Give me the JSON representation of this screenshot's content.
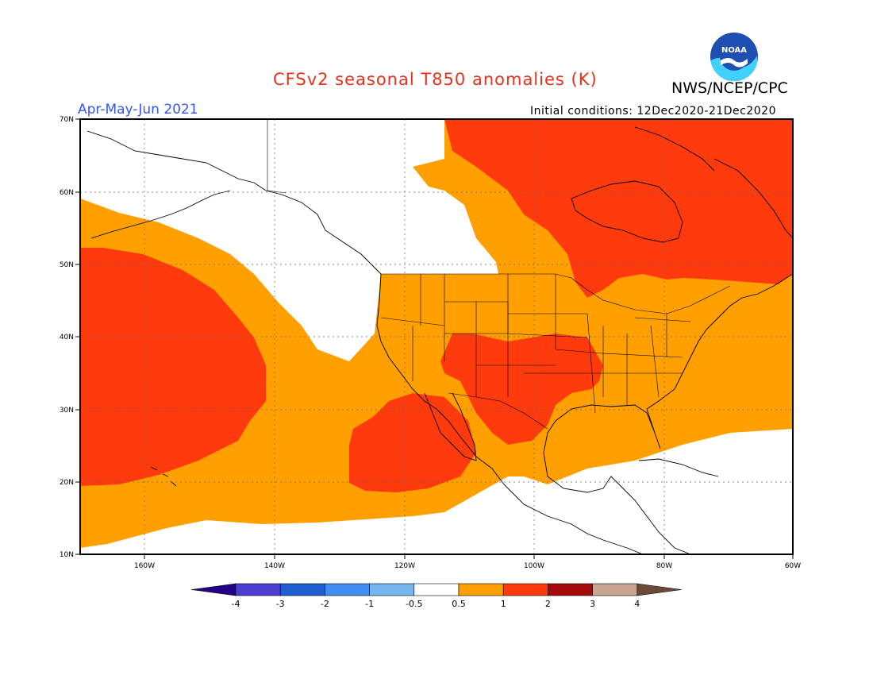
{
  "header": {
    "title": "CFSv2 seasonal T850 anomalies (K)",
    "agency": "NWS/NCEP/CPC",
    "period": "Apr-May-Jun 2021",
    "initial_conditions": "Initial conditions: 12Dec2020-21Dec2020",
    "logo_text": "NOAA"
  },
  "axes": {
    "lat_labels": [
      "70N",
      "60N",
      "50N",
      "40N",
      "30N",
      "20N",
      "10N"
    ],
    "lon_labels": [
      "160W",
      "140W",
      "120W",
      "100W",
      "80W",
      "60W"
    ]
  },
  "colorbar": {
    "labels": [
      "-4",
      "-3",
      "-2",
      "-1",
      "-0.5",
      "0.5",
      "1",
      "2",
      "3",
      "4"
    ],
    "colors": [
      "#220088",
      "#4a3fd0",
      "#1e5fd0",
      "#3f8ef0",
      "#78b6f2",
      "#ffffff",
      "#ffa000",
      "#ff3b0e",
      "#a50a0a",
      "#c9a58e",
      "#6b4a3a"
    ]
  },
  "colors": {
    "warm_0_5_to_1": "#ffa000",
    "warm_1_to_2": "#ff3b0e",
    "neutral": "#ffffff"
  }
}
